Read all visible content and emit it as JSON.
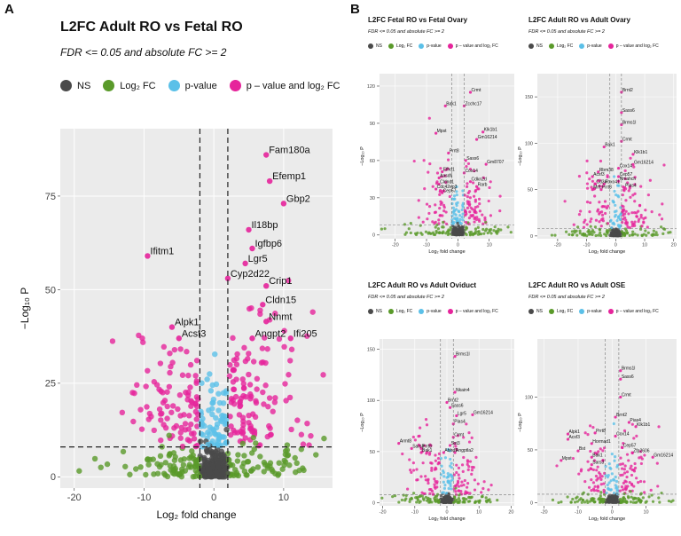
{
  "colors": {
    "ns": "#4a4a4a",
    "log2fc": "#5a9a2a",
    "pvalue": "#5bc0e8",
    "both": "#e6249b"
  },
  "panel_labels": {
    "a": "A",
    "b": "B"
  },
  "legend": {
    "ns": "NS",
    "log2fc": "Log₂ FC",
    "pvalue": "p-value",
    "both": "p – value and log₂ FC"
  },
  "chart_data": [
    {
      "id": "A",
      "type": "scatter",
      "title": "L2FC Adult RO vs Fetal RO",
      "subtitle": "FDR <= 0.05 and absolute FC >= 2",
      "xlabel": "Log₂ fold change",
      "ylabel": "−Log₁₀ P",
      "xlim": [
        -22,
        17
      ],
      "ylim": [
        -3,
        93
      ],
      "xticks": [
        -20,
        -10,
        0,
        10
      ],
      "yticks": [
        0,
        25,
        50,
        75
      ],
      "vlines": [
        -2,
        2
      ],
      "hline": 8,
      "labels": [
        {
          "text": "Fam180a",
          "x": 7.5,
          "y": 86
        },
        {
          "text": "Efemp1",
          "x": 8,
          "y": 79
        },
        {
          "text": "Gbp2",
          "x": 10,
          "y": 73
        },
        {
          "text": "Il18bp",
          "x": 5,
          "y": 66
        },
        {
          "text": "Ifitm1",
          "x": -9.5,
          "y": 59
        },
        {
          "text": "Igfbp6",
          "x": 5.5,
          "y": 61
        },
        {
          "text": "Lgr5",
          "x": 4.5,
          "y": 57
        },
        {
          "text": "Cyp2d22",
          "x": 2,
          "y": 53
        },
        {
          "text": "Crip1",
          "x": 7.5,
          "y": 51
        },
        {
          "text": "Cldn15",
          "x": 7,
          "y": 46
        },
        {
          "text": "Nnmt",
          "x": 7.5,
          "y": 41.5
        },
        {
          "text": "Alpk1",
          "x": -6,
          "y": 40
        },
        {
          "text": "Acsf3",
          "x": -5,
          "y": 37
        },
        {
          "text": "Angpt2",
          "x": 5.5,
          "y": 37
        },
        {
          "text": "Ifi205",
          "x": 11,
          "y": 37
        }
      ]
    },
    {
      "id": "B1",
      "type": "scatter",
      "title": "L2FC Fetal RO vs Fetal Ovary",
      "subtitle": "FDR <= 0.05 and absolute FC >= 2",
      "xlabel": "Log₂ fold change",
      "ylabel": "−Log₁₀ P",
      "xlim": [
        -25,
        18
      ],
      "ylim": [
        -3,
        130
      ],
      "xticks": [
        -20,
        -10,
        0,
        10
      ],
      "yticks": [
        0,
        30,
        60,
        90,
        120
      ],
      "vlines": [
        -2,
        2
      ],
      "hline": 8,
      "labels": [
        {
          "text": "Crmt",
          "x": 4,
          "y": 115
        },
        {
          "text": "Bak1",
          "x": -4,
          "y": 104
        },
        {
          "text": "Zcchc17",
          "x": 2,
          "y": 104
        },
        {
          "text": "Mpst",
          "x": -7,
          "y": 82
        },
        {
          "text": "Klk1b1",
          "x": 8,
          "y": 83
        },
        {
          "text": "Gm16214",
          "x": 6,
          "y": 77
        },
        {
          "text": "Prrt8",
          "x": -3,
          "y": 66
        },
        {
          "text": "Sass6",
          "x": 2.5,
          "y": 60
        },
        {
          "text": "Gm8707",
          "x": 9,
          "y": 57
        },
        {
          "text": "Efhd1",
          "x": -5,
          "y": 51
        },
        {
          "text": "Cox14",
          "x": 2,
          "y": 50
        },
        {
          "text": "Aasdh",
          "x": -6,
          "y": 46
        },
        {
          "text": "Cldnd1",
          "x": -6,
          "y": 41
        },
        {
          "text": "Cdc42ep3",
          "x": -7,
          "y": 37
        },
        {
          "text": "Cep57",
          "x": -5,
          "y": 34
        },
        {
          "text": "Cdkn2d",
          "x": 4,
          "y": 43
        },
        {
          "text": "Rarb",
          "x": 6,
          "y": 39
        }
      ]
    },
    {
      "id": "B2",
      "type": "scatter",
      "title": "L2FC Adult RO vs Adult Ovary",
      "subtitle": "FDR <= 0.05 and absolute FC >= 2",
      "xlabel": "Log₂ fold change",
      "ylabel": "−Log₁₀ P",
      "xlim": [
        -27,
        21
      ],
      "ylim": [
        -3,
        175
      ],
      "xticks": [
        -20,
        -10,
        0,
        10,
        20
      ],
      "yticks": [
        0,
        50,
        100,
        150
      ],
      "vlines": [
        -2,
        2
      ],
      "hline": 8,
      "labels": [
        {
          "text": "Brnt2",
          "x": 2,
          "y": 155
        },
        {
          "text": "Sass6",
          "x": 2,
          "y": 133
        },
        {
          "text": "Brms1l",
          "x": 2,
          "y": 120
        },
        {
          "text": "Crmt",
          "x": 2,
          "y": 102
        },
        {
          "text": "Bak1",
          "x": -4,
          "y": 96
        },
        {
          "text": "Klk1b1",
          "x": 6,
          "y": 88
        },
        {
          "text": "Cox14",
          "x": 1,
          "y": 73
        },
        {
          "text": "Gm16214",
          "x": 6,
          "y": 77
        },
        {
          "text": "Rbm38",
          "x": -6,
          "y": 69
        },
        {
          "text": "Cep57",
          "x": 1,
          "y": 64
        },
        {
          "text": "Acsf3",
          "x": -8,
          "y": 64
        },
        {
          "text": "Nmahch",
          "x": 1,
          "y": 59
        },
        {
          "text": "Cd34",
          "x": -7,
          "y": 56
        },
        {
          "text": "Fbxo41",
          "x": -4,
          "y": 56
        },
        {
          "text": "Pias4",
          "x": 3,
          "y": 52
        },
        {
          "text": "Mrfl",
          "x": -8,
          "y": 50
        },
        {
          "text": "Prrt8",
          "x": -5,
          "y": 50
        }
      ]
    },
    {
      "id": "B3",
      "type": "scatter",
      "title": "L2FC Adult RO vs Adult Oviduct",
      "subtitle": "FDR <= 0.05 and absolute FC >= 2",
      "xlabel": "Log₂ fold change",
      "ylabel": "−Log₁₀ P",
      "xlim": [
        -21,
        21
      ],
      "ylim": [
        -3,
        160
      ],
      "xticks": [
        -20,
        -10,
        0,
        10,
        20
      ],
      "yticks": [
        0,
        50,
        100,
        150
      ],
      "vlines": [
        -2,
        2
      ],
      "hline": 8,
      "labels": [
        {
          "text": "Brms1l",
          "x": 2.5,
          "y": 143
        },
        {
          "text": "Nkain4",
          "x": 2.5,
          "y": 108
        },
        {
          "text": "Brnt2",
          "x": 0,
          "y": 98
        },
        {
          "text": "Sass6",
          "x": 1,
          "y": 93
        },
        {
          "text": "Lgr5",
          "x": 3,
          "y": 85
        },
        {
          "text": "Gm16214",
          "x": 8,
          "y": 86
        },
        {
          "text": "Pias4",
          "x": 2,
          "y": 77
        },
        {
          "text": "Crmt",
          "x": 2,
          "y": 64
        },
        {
          "text": "Armt8",
          "x": -15,
          "y": 58
        },
        {
          "text": "Sst3",
          "x": 1,
          "y": 56
        },
        {
          "text": "Sars3",
          "x": -11,
          "y": 53
        },
        {
          "text": "Prrt8",
          "x": -8,
          "y": 53
        },
        {
          "text": "Bak1",
          "x": -8,
          "y": 49
        },
        {
          "text": "Abhd1",
          "x": -1,
          "y": 49
        },
        {
          "text": "Angptla2",
          "x": 2.5,
          "y": 49
        }
      ]
    },
    {
      "id": "B4",
      "type": "scatter",
      "title": "L2FC Adult RO vs Adult OSE",
      "subtitle": "FDR <= 0.05 and absolute FC >= 2",
      "xlabel": "Log₂ fold change",
      "ylabel": "−Log₁₀ P",
      "xlim": [
        -22,
        19
      ],
      "ylim": [
        -3,
        155
      ],
      "xticks": [
        -20,
        -10,
        0,
        10
      ],
      "yticks": [
        0,
        50,
        100
      ],
      "vlines": [
        -2,
        2
      ],
      "hline": 8,
      "labels": [
        {
          "text": "Brms1l",
          "x": 2.5,
          "y": 125
        },
        {
          "text": "Sass6",
          "x": 2.5,
          "y": 117
        },
        {
          "text": "Crmt",
          "x": 2.5,
          "y": 100
        },
        {
          "text": "Brnt2",
          "x": 1,
          "y": 81
        },
        {
          "text": "Pias4",
          "x": 5,
          "y": 76
        },
        {
          "text": "Klk1b1",
          "x": 7,
          "y": 72
        },
        {
          "text": "Alpk1",
          "x": -13,
          "y": 65
        },
        {
          "text": "Prrt8",
          "x": -5,
          "y": 66
        },
        {
          "text": "Acsf3",
          "x": -13,
          "y": 60
        },
        {
          "text": "Cox14",
          "x": 1,
          "y": 63
        },
        {
          "text": "Hormad1",
          "x": -6,
          "y": 56
        },
        {
          "text": "Cep57",
          "x": 3,
          "y": 52
        },
        {
          "text": "Bst",
          "x": -10,
          "y": 49
        },
        {
          "text": "Zfp2606",
          "x": 6,
          "y": 47
        },
        {
          "text": "Bak1",
          "x": -6,
          "y": 43
        },
        {
          "text": "Gm16214",
          "x": 12,
          "y": 43
        },
        {
          "text": "Mpst",
          "x": -15,
          "y": 40
        },
        {
          "text": "Sars3",
          "x": -6,
          "y": 36
        }
      ]
    }
  ]
}
